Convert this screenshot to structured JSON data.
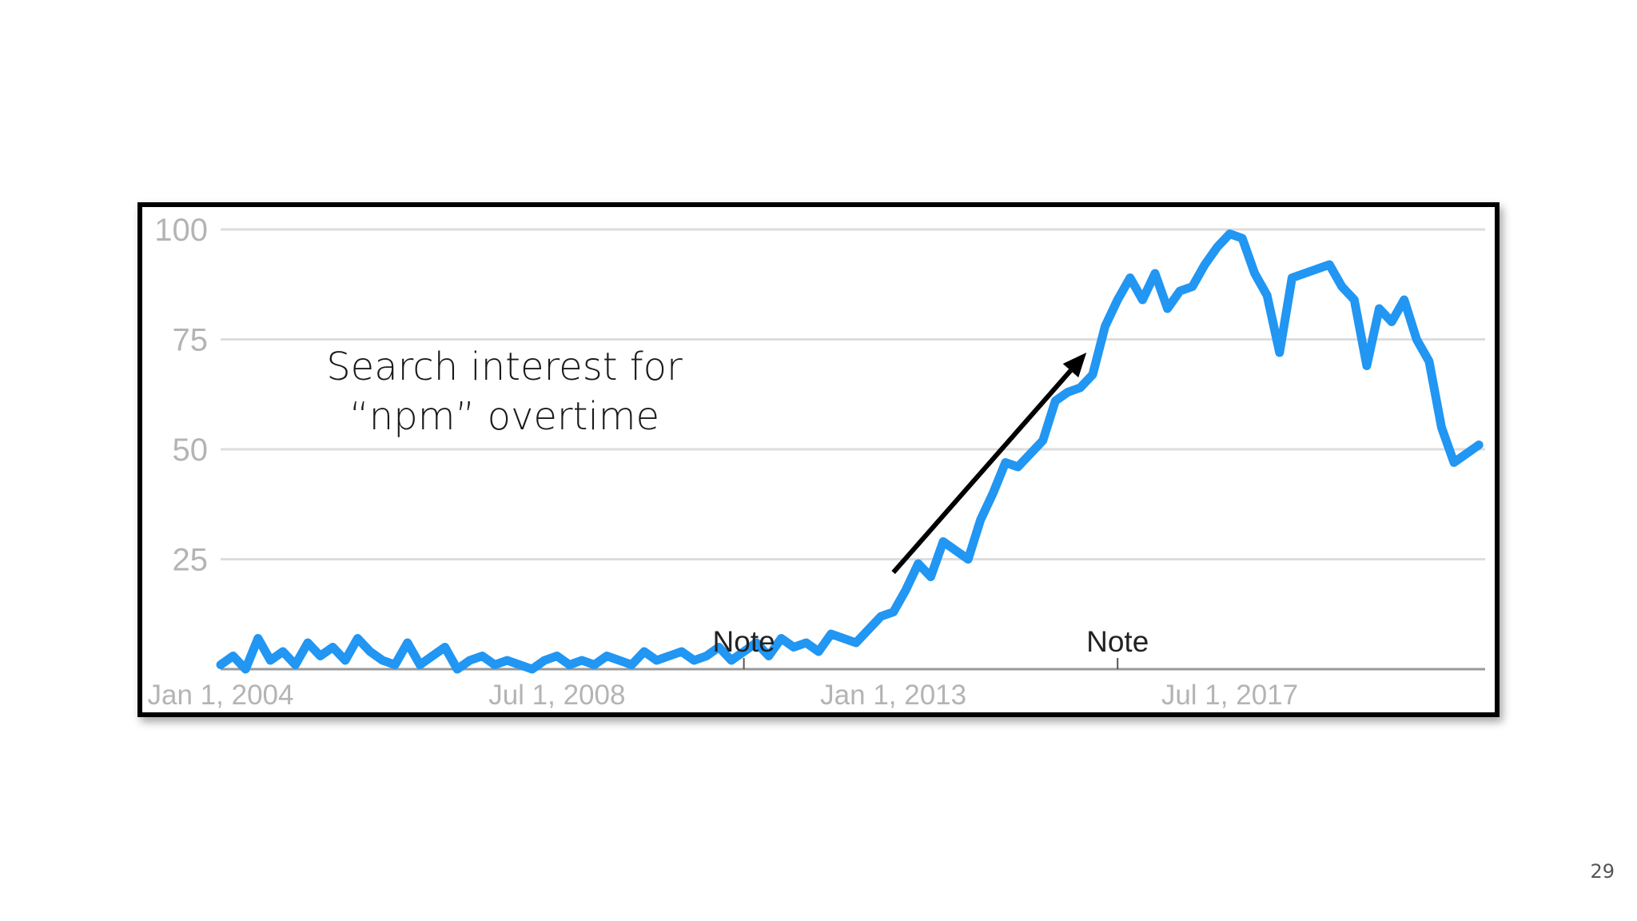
{
  "annotation": {
    "line1": "Search interest for",
    "line2": "“npm” overtime"
  },
  "page_number": "29",
  "colors": {
    "series": "#2196f3",
    "grid": "#dddddd",
    "tick_text": "#b4b4b4",
    "arrow": "#000000"
  },
  "chart_data": {
    "type": "line",
    "title": "",
    "xlabel": "",
    "ylabel": "",
    "ylim": [
      0,
      100
    ],
    "xlim": [
      "2004-01-01",
      "2020-12-01"
    ],
    "grid": true,
    "y_ticks": [
      "100",
      "75",
      "50",
      "25"
    ],
    "x_ticks": [
      {
        "label": "Jan 1, 2004",
        "date": "2004-01-01"
      },
      {
        "label": "Jul 1, 2008",
        "date": "2008-07-01"
      },
      {
        "label": "Jan 1, 2013",
        "date": "2013-01-01"
      },
      {
        "label": "Jul 1, 2017",
        "date": "2017-07-01"
      }
    ],
    "notes": [
      {
        "label": "Note",
        "date": "2011-01-01"
      },
      {
        "label": "Note",
        "date": "2016-01-01"
      }
    ],
    "trend_arrow": {
      "from": [
        "2013-01-01",
        22
      ],
      "to": [
        "2015-08-01",
        72
      ]
    },
    "series": [
      {
        "name": "",
        "x": [
          "2004-01",
          "2004-03",
          "2004-05",
          "2004-07",
          "2004-09",
          "2004-11",
          "2005-01",
          "2005-03",
          "2005-05",
          "2005-07",
          "2005-09",
          "2005-11",
          "2006-01",
          "2006-03",
          "2006-05",
          "2006-07",
          "2006-09",
          "2006-11",
          "2007-01",
          "2007-03",
          "2007-05",
          "2007-07",
          "2007-09",
          "2007-11",
          "2008-01",
          "2008-03",
          "2008-05",
          "2008-07",
          "2008-09",
          "2008-11",
          "2009-01",
          "2009-03",
          "2009-05",
          "2009-07",
          "2009-09",
          "2009-11",
          "2010-01",
          "2010-03",
          "2010-05",
          "2010-07",
          "2010-09",
          "2010-11",
          "2011-01",
          "2011-03",
          "2011-05",
          "2011-07",
          "2011-09",
          "2011-11",
          "2012-01",
          "2012-03",
          "2012-05",
          "2012-07",
          "2012-09",
          "2012-11",
          "2013-01",
          "2013-03",
          "2013-05",
          "2013-07",
          "2013-09",
          "2013-11",
          "2014-01",
          "2014-03",
          "2014-05",
          "2014-07",
          "2014-09",
          "2014-11",
          "2015-01",
          "2015-03",
          "2015-05",
          "2015-07",
          "2015-09",
          "2015-11",
          "2016-01",
          "2016-03",
          "2016-05",
          "2016-07",
          "2016-09",
          "2016-11",
          "2017-01",
          "2017-03",
          "2017-05",
          "2017-07",
          "2017-09",
          "2017-11",
          "2018-01",
          "2018-03",
          "2018-05",
          "2018-07",
          "2018-09",
          "2018-11",
          "2019-01",
          "2019-03",
          "2019-05",
          "2019-07",
          "2019-09",
          "2019-11",
          "2020-01",
          "2020-03",
          "2020-05",
          "2020-07",
          "2020-09",
          "2020-11"
        ],
        "values": [
          1,
          3,
          0,
          7,
          2,
          4,
          1,
          6,
          3,
          5,
          2,
          7,
          4,
          2,
          1,
          6,
          1,
          3,
          5,
          0,
          2,
          3,
          1,
          2,
          1,
          0,
          2,
          3,
          1,
          2,
          1,
          3,
          2,
          1,
          4,
          2,
          3,
          4,
          2,
          3,
          5,
          2,
          4,
          6,
          3,
          7,
          5,
          6,
          4,
          8,
          7,
          6,
          9,
          12,
          13,
          18,
          24,
          21,
          29,
          27,
          25,
          34,
          40,
          47,
          46,
          49,
          52,
          61,
          63,
          64,
          67,
          78,
          84,
          89,
          84,
          90,
          82,
          86,
          87,
          92,
          96,
          99,
          98,
          90,
          85,
          72,
          89,
          90,
          91,
          92,
          87,
          84,
          69,
          82,
          79,
          84,
          75,
          70,
          55,
          47,
          49,
          51
        ]
      }
    ]
  }
}
